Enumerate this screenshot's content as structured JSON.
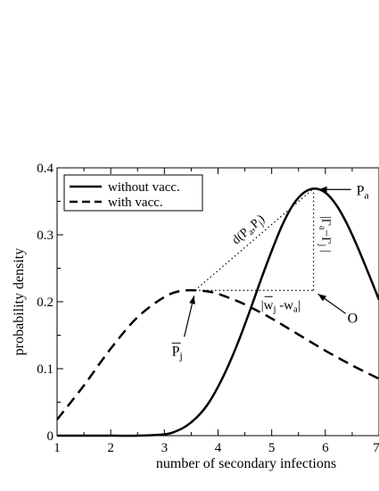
{
  "chart_data": {
    "type": "line",
    "xlabel": "number of secondary infections",
    "ylabel": "probability density",
    "xlim": [
      1,
      7
    ],
    "ylim": [
      0,
      0.4
    ],
    "x_ticks": [
      "1",
      "2",
      "3",
      "4",
      "5",
      "6",
      "7"
    ],
    "y_ticks": [
      "0",
      "0.1",
      "0.2",
      "0.3",
      "0.4"
    ],
    "grid": false,
    "legend_position": "top-left",
    "series": [
      {
        "name": "without vacc.",
        "style": "solid",
        "x": [
          1,
          2,
          2.5,
          3,
          3.2,
          3.4,
          3.6,
          3.8,
          4,
          4.2,
          4.4,
          4.6,
          4.8,
          5,
          5.2,
          5.4,
          5.6,
          5.8,
          6,
          6.2,
          6.4,
          6.6,
          6.8,
          7
        ],
        "y": [
          0,
          0,
          0,
          0.002,
          0.006,
          0.014,
          0.027,
          0.046,
          0.073,
          0.106,
          0.145,
          0.188,
          0.233,
          0.276,
          0.315,
          0.345,
          0.363,
          0.369,
          0.363,
          0.345,
          0.317,
          0.282,
          0.243,
          0.203
        ]
      },
      {
        "name": "with vacc.",
        "style": "dashed",
        "x": [
          1,
          1.5,
          2,
          2.5,
          3,
          3.3,
          3.6,
          3.9,
          4.2,
          4.5,
          5,
          5.5,
          6,
          6.5,
          7
        ],
        "y": [
          0.024,
          0.075,
          0.13,
          0.177,
          0.207,
          0.216,
          0.217,
          0.214,
          0.206,
          0.196,
          0.175,
          0.151,
          0.127,
          0.105,
          0.085
        ]
      }
    ],
    "annotations": {
      "pa_label": "P",
      "pa_sub": "a",
      "pj_label": "P",
      "pj_sub": "j",
      "o_label": "O",
      "distance_label": "d(P",
      "distance_sub_a": "a",
      "distance_mid": ",P",
      "distance_sub_j": "j",
      "distance_close": ")",
      "w_diff_open": "|w",
      "w_diff_sub_j": "j",
      "w_diff_mid": " -w",
      "w_diff_sub_a": "a",
      "w_diff_close": "|",
      "gamma_diff_open": "|Γ",
      "gamma_diff_sub_a": "a",
      "gamma_diff_mid": "−Γ",
      "gamma_diff_sub_j": "j",
      "gamma_diff_close": " |"
    },
    "points": {
      "pa": {
        "x": 5.78,
        "y": 0.369
      },
      "pj": {
        "x": 3.57,
        "y": 0.217
      },
      "o": {
        "x": 5.78,
        "y": 0.217
      }
    }
  }
}
